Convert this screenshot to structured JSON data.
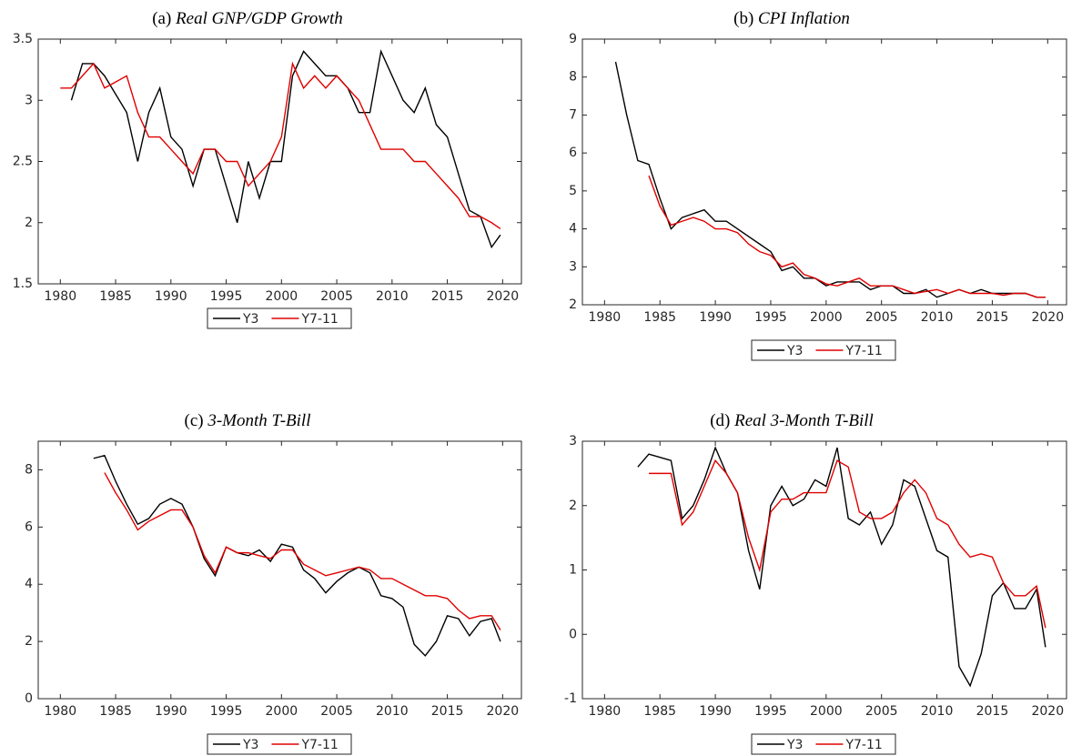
{
  "chart_data": [
    {
      "type": "line",
      "label": "(a)",
      "title": "Real GNP/GDP Growth",
      "x": [
        1980,
        1981,
        1982,
        1983,
        1984,
        1985,
        1986,
        1987,
        1988,
        1989,
        1990,
        1991,
        1992,
        1993,
        1994,
        1995,
        1996,
        1997,
        1998,
        1999,
        2000,
        2001,
        2002,
        2003,
        2004,
        2005,
        2006,
        2007,
        2008,
        2009,
        2010,
        2011,
        2012,
        2013,
        2014,
        2015,
        2016,
        2017,
        2018,
        2019,
        2019.8
      ],
      "series": [
        {
          "name": "Y3",
          "color": "#000000",
          "values": [
            null,
            3.0,
            3.3,
            3.3,
            3.2,
            3.05,
            2.9,
            2.5,
            2.9,
            3.1,
            2.7,
            2.6,
            2.3,
            2.6,
            2.6,
            2.3,
            2.0,
            2.5,
            2.2,
            2.5,
            2.5,
            3.2,
            3.4,
            3.3,
            3.2,
            3.2,
            3.1,
            2.9,
            2.9,
            3.4,
            3.2,
            3.0,
            2.9,
            3.1,
            2.8,
            2.7,
            2.4,
            2.1,
            2.05,
            1.8,
            1.9
          ]
        },
        {
          "name": "Y7-11",
          "color": "#e00000",
          "values": [
            3.1,
            3.1,
            3.2,
            3.3,
            3.1,
            3.15,
            3.2,
            2.9,
            2.7,
            2.7,
            2.6,
            2.5,
            2.4,
            2.6,
            2.6,
            2.5,
            2.5,
            2.3,
            2.4,
            2.5,
            2.7,
            3.3,
            3.1,
            3.2,
            3.1,
            3.2,
            3.1,
            3.0,
            2.8,
            2.6,
            2.6,
            2.6,
            2.5,
            2.5,
            2.4,
            2.3,
            2.2,
            2.05,
            2.05,
            2.0,
            1.95
          ]
        }
      ],
      "xlim": [
        1978,
        2021.7
      ],
      "xticks": [
        1980,
        1985,
        1990,
        1995,
        2000,
        2005,
        2010,
        2015,
        2020
      ],
      "ylim": [
        1.5,
        3.5
      ],
      "yticks": [
        1.5,
        2,
        2.5,
        3,
        3.5
      ],
      "legend": "bottom"
    },
    {
      "type": "line",
      "label": "(b)",
      "title": "CPI Inflation",
      "x": [
        1980,
        1981,
        1982,
        1983,
        1984,
        1985,
        1986,
        1987,
        1988,
        1989,
        1990,
        1991,
        1992,
        1993,
        1994,
        1995,
        1996,
        1997,
        1998,
        1999,
        2000,
        2001,
        2002,
        2003,
        2004,
        2005,
        2006,
        2007,
        2008,
        2009,
        2010,
        2011,
        2012,
        2013,
        2014,
        2015,
        2016,
        2017,
        2018,
        2019,
        2019.8
      ],
      "series": [
        {
          "name": "Y3",
          "color": "#000000",
          "values": [
            null,
            8.4,
            7.0,
            5.8,
            5.7,
            4.8,
            4.0,
            4.3,
            4.4,
            4.5,
            4.2,
            4.2,
            4.0,
            3.8,
            3.6,
            3.4,
            2.9,
            3.0,
            2.7,
            2.7,
            2.5,
            2.6,
            2.6,
            2.6,
            2.4,
            2.5,
            2.5,
            2.3,
            2.3,
            2.4,
            2.2,
            2.3,
            2.4,
            2.3,
            2.4,
            2.3,
            2.3,
            2.3,
            2.3,
            2.2,
            2.2
          ]
        },
        {
          "name": "Y7-11",
          "color": "#e00000",
          "values": [
            null,
            null,
            null,
            null,
            5.4,
            4.6,
            4.1,
            4.2,
            4.3,
            4.2,
            4.0,
            4.0,
            3.9,
            3.6,
            3.4,
            3.3,
            3.0,
            3.1,
            2.8,
            2.7,
            2.55,
            2.5,
            2.6,
            2.7,
            2.5,
            2.5,
            2.5,
            2.4,
            2.3,
            2.35,
            2.4,
            2.3,
            2.4,
            2.3,
            2.3,
            2.3,
            2.25,
            2.3,
            2.3,
            2.2,
            2.2
          ]
        }
      ],
      "xlim": [
        1978,
        2021.7
      ],
      "xticks": [
        1980,
        1985,
        1990,
        1995,
        2000,
        2005,
        2010,
        2015,
        2020
      ],
      "ylim": [
        2,
        9
      ],
      "yticks": [
        2,
        3,
        4,
        5,
        6,
        7,
        8,
        9
      ],
      "legend": "bottom"
    },
    {
      "type": "line",
      "label": "(c)",
      "title": "3-Month T-Bill",
      "x": [
        1980,
        1981,
        1982,
        1983,
        1984,
        1985,
        1986,
        1987,
        1988,
        1989,
        1990,
        1991,
        1992,
        1993,
        1994,
        1995,
        1996,
        1997,
        1998,
        1999,
        2000,
        2001,
        2002,
        2003,
        2004,
        2005,
        2006,
        2007,
        2008,
        2009,
        2010,
        2011,
        2012,
        2013,
        2014,
        2015,
        2016,
        2017,
        2018,
        2019,
        2019.8
      ],
      "series": [
        {
          "name": "Y3",
          "color": "#000000",
          "values": [
            null,
            null,
            null,
            8.4,
            8.5,
            7.6,
            6.8,
            6.1,
            6.3,
            6.8,
            7.0,
            6.8,
            6.0,
            4.9,
            4.3,
            5.3,
            5.1,
            5.0,
            5.2,
            4.8,
            5.4,
            5.3,
            4.5,
            4.2,
            3.7,
            4.1,
            4.4,
            4.6,
            4.4,
            3.6,
            3.5,
            3.2,
            1.9,
            1.5,
            2.0,
            2.9,
            2.8,
            2.2,
            2.7,
            2.8,
            2.0
          ]
        },
        {
          "name": "Y7-11",
          "color": "#e00000",
          "values": [
            null,
            null,
            null,
            null,
            7.9,
            7.2,
            6.6,
            5.9,
            6.2,
            6.4,
            6.6,
            6.6,
            6.0,
            5.0,
            4.4,
            5.3,
            5.1,
            5.1,
            5.0,
            4.9,
            5.2,
            5.2,
            4.7,
            4.5,
            4.3,
            4.4,
            4.5,
            4.6,
            4.5,
            4.2,
            4.2,
            4.0,
            3.8,
            3.6,
            3.6,
            3.5,
            3.1,
            2.8,
            2.9,
            2.9,
            2.4
          ]
        }
      ],
      "xlim": [
        1978,
        2021.7
      ],
      "xticks": [
        1980,
        1985,
        1990,
        1995,
        2000,
        2005,
        2010,
        2015,
        2020
      ],
      "ylim": [
        0,
        9
      ],
      "yticks": [
        0,
        2,
        4,
        6,
        8
      ],
      "legend": "bottom"
    },
    {
      "type": "line",
      "label": "(d)",
      "title": "Real 3-Month T-Bill",
      "x": [
        1980,
        1981,
        1982,
        1983,
        1984,
        1985,
        1986,
        1987,
        1988,
        1989,
        1990,
        1991,
        1992,
        1993,
        1994,
        1995,
        1996,
        1997,
        1998,
        1999,
        2000,
        2001,
        2002,
        2003,
        2004,
        2005,
        2006,
        2007,
        2008,
        2009,
        2010,
        2011,
        2012,
        2013,
        2014,
        2015,
        2016,
        2017,
        2018,
        2019,
        2019.8
      ],
      "series": [
        {
          "name": "Y3",
          "color": "#000000",
          "values": [
            null,
            null,
            null,
            2.6,
            2.8,
            2.75,
            2.7,
            1.8,
            2.0,
            2.4,
            2.9,
            2.5,
            2.2,
            1.3,
            0.7,
            2.0,
            2.3,
            2.0,
            2.1,
            2.4,
            2.3,
            2.9,
            1.8,
            1.7,
            1.9,
            1.4,
            1.7,
            2.4,
            2.3,
            1.8,
            1.3,
            1.2,
            -0.5,
            -0.8,
            -0.3,
            0.6,
            0.8,
            0.4,
            0.4,
            0.7,
            -0.2
          ]
        },
        {
          "name": "Y7-11",
          "color": "#e00000",
          "values": [
            null,
            null,
            null,
            null,
            2.5,
            2.5,
            2.5,
            1.7,
            1.9,
            2.3,
            2.7,
            2.5,
            2.2,
            1.5,
            1.0,
            1.9,
            2.1,
            2.1,
            2.2,
            2.2,
            2.2,
            2.7,
            2.6,
            1.9,
            1.8,
            1.8,
            1.9,
            2.2,
            2.4,
            2.2,
            1.8,
            1.7,
            1.4,
            1.2,
            1.25,
            1.2,
            0.8,
            0.6,
            0.6,
            0.75,
            0.1
          ]
        }
      ],
      "xlim": [
        1978,
        2021.7
      ],
      "xticks": [
        1980,
        1985,
        1990,
        1995,
        2000,
        2005,
        2010,
        2015,
        2020
      ],
      "ylim": [
        -1,
        3
      ],
      "yticks": [
        -1,
        0,
        1,
        2,
        3
      ],
      "legend": "bottom"
    }
  ]
}
